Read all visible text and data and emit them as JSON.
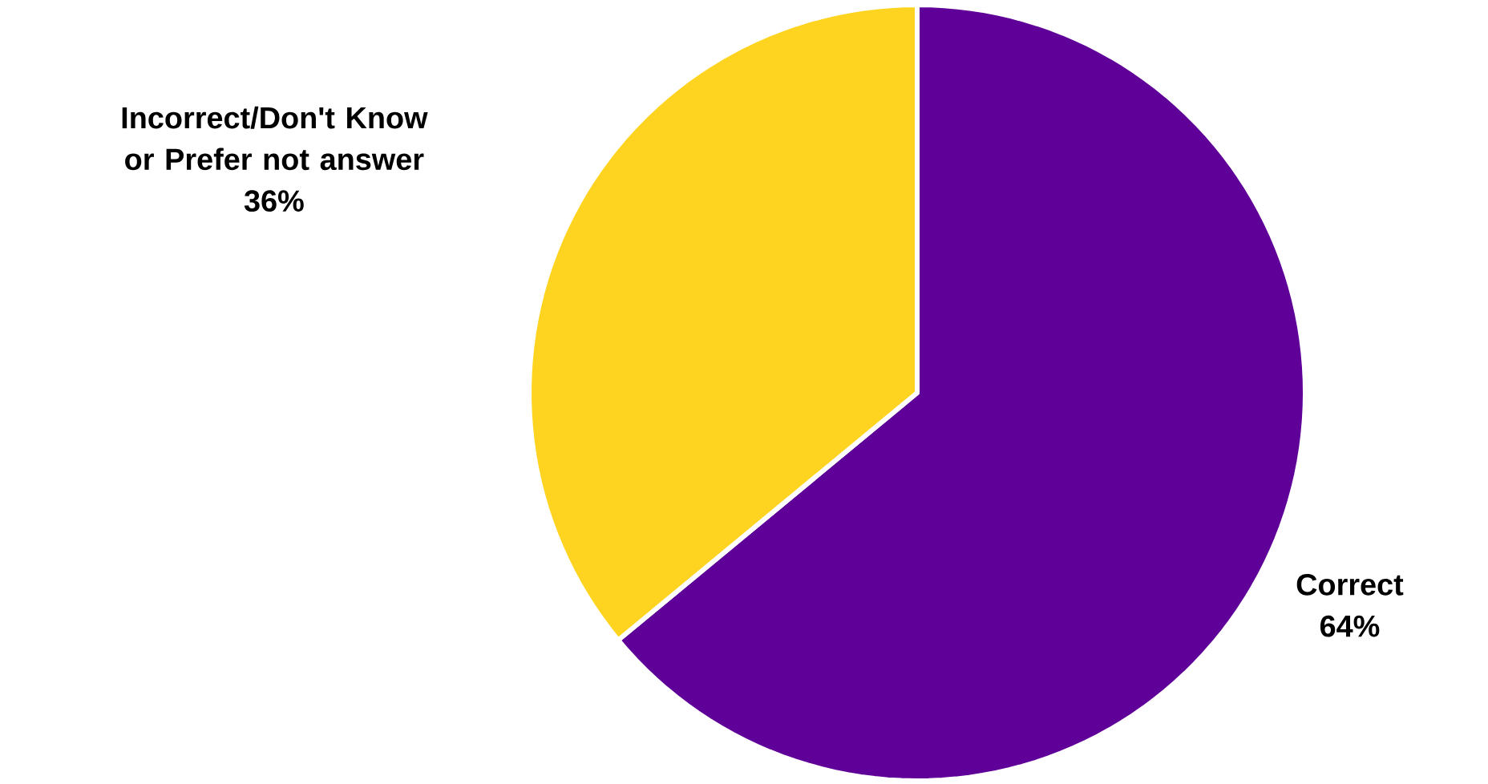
{
  "chart_data": {
    "type": "pie",
    "categories": [
      "Correct",
      "Incorrect/Don't Know or Prefer not answer"
    ],
    "values": [
      64,
      36
    ],
    "colors": [
      "#5f0099",
      "#fed420"
    ],
    "value_labels": [
      "64%",
      "36%"
    ]
  }
}
